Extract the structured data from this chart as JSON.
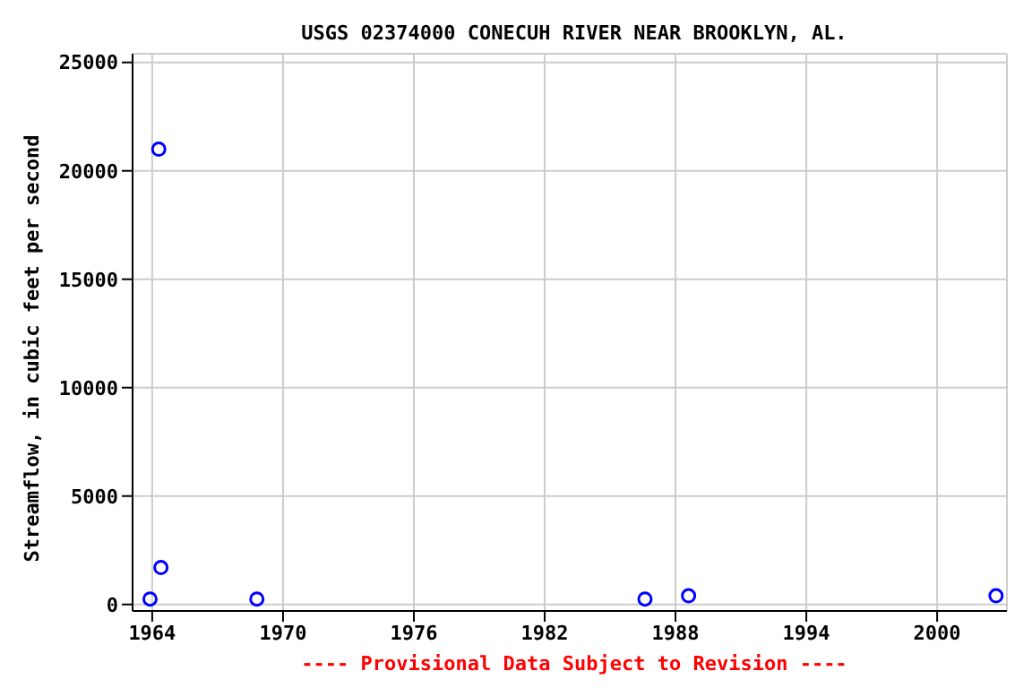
{
  "chart_data": {
    "type": "scatter",
    "title": "USGS 02374000 CONECUH RIVER NEAR BROOKLYN, AL.",
    "ylabel": "Streamflow, in cubic feet per second",
    "annotations": [
      "---- Provisional Data Subject to Revision ----"
    ],
    "series": [
      {
        "color": "#0000ff",
        "x": [
          1963.9,
          1964.3,
          1964.4,
          1968.8,
          1986.6,
          1988.6,
          2002.7
        ],
        "values": [
          250,
          21000,
          1700,
          250,
          250,
          400,
          400
        ]
      }
    ],
    "xlim": [
      1963.1,
      2003.2
    ],
    "xticks": [
      1964,
      1970,
      1976,
      1982,
      1988,
      1994,
      2000
    ],
    "ylim": [
      -300,
      25400
    ],
    "yticks": [
      0,
      5000,
      10000,
      15000,
      20000,
      25000
    ],
    "grid": true,
    "marker": "circle",
    "legend": false
  }
}
